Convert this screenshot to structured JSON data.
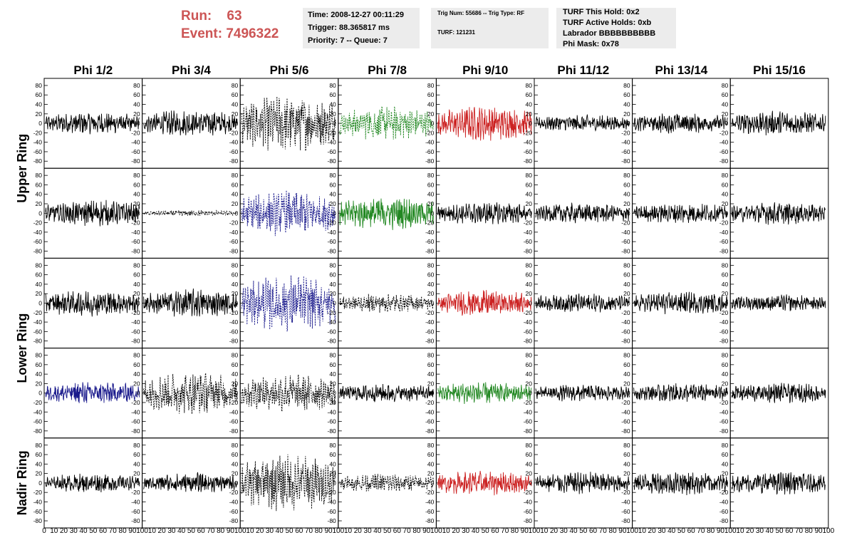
{
  "header": {
    "run_label": "Run:",
    "run_value": "63",
    "event_label": "Event:",
    "event_value": "7496322",
    "time": "Time: 2008-12-27 00:11:29",
    "trigger": "Trigger: 88.365817 ms",
    "priority": "Priority: 7 -- Queue: 7",
    "trig_num": "Trig Num: 55686 -- Trig Type: RF",
    "turf": "TURF: 121231",
    "turf_hold": "TURF This Hold: 0x2",
    "turf_active": "TURF Active Holds: 0xb",
    "labrador": "Labrador BBBBBBBBBB",
    "phi_mask": "Phi Mask: 0x78"
  },
  "columns": [
    "Phi 1/2",
    "Phi 3/4",
    "Phi 5/6",
    "Phi 7/8",
    "Phi 9/10",
    "Phi 11/12",
    "Phi 13/14",
    "Phi 15/16"
  ],
  "ring_labels": [
    {
      "text": "Upper Ring",
      "rows": [
        0,
        1
      ]
    },
    {
      "text": "Lower Ring",
      "rows": [
        2,
        3
      ]
    },
    {
      "text": "Nadir Ring",
      "rows": [
        4
      ]
    }
  ],
  "y_ticks": [
    80,
    60,
    40,
    20,
    0,
    -20,
    -40,
    -60,
    -80
  ],
  "x_ticks": [
    0,
    10,
    20,
    30,
    40,
    50,
    60,
    70,
    80,
    90,
    100
  ],
  "colors": {
    "black": "#000000",
    "red": "#cc2222",
    "green": "#228822",
    "blue": "#1a1a8c"
  },
  "chart_data": {
    "type": "line",
    "xlim": [
      0,
      100
    ],
    "ylim": [
      -95,
      95
    ],
    "panels": [
      [
        {
          "color": "black",
          "style": "solid",
          "amp": 12
        },
        {
          "color": "black",
          "style": "solid",
          "amp": 14
        },
        {
          "color": "black",
          "style": "dashed",
          "amp": 30
        },
        {
          "color": "green",
          "style": "dashed",
          "amp": 18
        },
        {
          "color": "red",
          "style": "solid",
          "amp": 18
        },
        {
          "color": "black",
          "style": "solid",
          "amp": 9
        },
        {
          "color": "black",
          "style": "solid",
          "amp": 11
        },
        {
          "color": "black",
          "style": "solid",
          "amp": 13
        }
      ],
      [
        {
          "color": "black",
          "style": "solid",
          "amp": 14
        },
        {
          "color": "black",
          "style": "dashed",
          "amp": 3
        },
        {
          "color": "blue",
          "style": "dashed",
          "amp": 24
        },
        {
          "color": "green",
          "style": "solid",
          "amp": 18
        },
        {
          "color": "black",
          "style": "solid",
          "amp": 12
        },
        {
          "color": "black",
          "style": "solid",
          "amp": 11
        },
        {
          "color": "black",
          "style": "solid",
          "amp": 11
        },
        {
          "color": "black",
          "style": "solid",
          "amp": 12
        }
      ],
      [
        {
          "color": "black",
          "style": "solid",
          "amp": 14
        },
        {
          "color": "black",
          "style": "solid",
          "amp": 15
        },
        {
          "color": "blue",
          "style": "dashed",
          "amp": 30
        },
        {
          "color": "black",
          "style": "dashed",
          "amp": 10
        },
        {
          "color": "red",
          "style": "solid",
          "amp": 14
        },
        {
          "color": "black",
          "style": "solid",
          "amp": 10
        },
        {
          "color": "black",
          "style": "solid",
          "amp": 12
        },
        {
          "color": "black",
          "style": "solid",
          "amp": 9
        }
      ],
      [
        {
          "color": "blue",
          "style": "solid",
          "amp": 12
        },
        {
          "color": "black",
          "style": "dashed",
          "amp": 22
        },
        {
          "color": "black",
          "style": "dashed",
          "amp": 20
        },
        {
          "color": "black",
          "style": "solid",
          "amp": 10
        },
        {
          "color": "green",
          "style": "solid",
          "amp": 12
        },
        {
          "color": "black",
          "style": "solid",
          "amp": 9
        },
        {
          "color": "black",
          "style": "solid",
          "amp": 10
        },
        {
          "color": "black",
          "style": "solid",
          "amp": 11
        }
      ],
      [
        {
          "color": "black",
          "style": "solid",
          "amp": 10
        },
        {
          "color": "black",
          "style": "solid",
          "amp": 11
        },
        {
          "color": "black",
          "style": "dashed",
          "amp": 30
        },
        {
          "color": "black",
          "style": "dashed",
          "amp": 10
        },
        {
          "color": "red",
          "style": "solid",
          "amp": 13
        },
        {
          "color": "black",
          "style": "solid",
          "amp": 12
        },
        {
          "color": "black",
          "style": "solid",
          "amp": 13
        },
        {
          "color": "black",
          "style": "solid",
          "amp": 12
        }
      ]
    ]
  }
}
